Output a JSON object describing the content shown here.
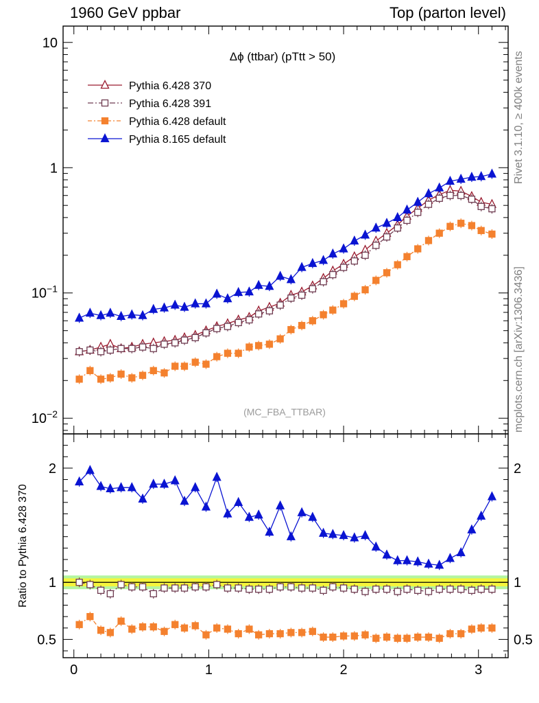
{
  "header": {
    "left": "1960 GeV ppbar",
    "right": "Top (parton level)"
  },
  "side_labels": {
    "top": "Rivet 3.1.10, ≥ 400k events",
    "bottom": "mcplots.cern.ch [arXiv:1306.3436]"
  },
  "chart_data": [
    {
      "type": "line",
      "title": "Δϕ (ttbar) (pTtt > 50)",
      "watermark": "(MC_FBA_TTBAR)",
      "xlabel": "",
      "ylabel": "",
      "yscale": "log",
      "xlim": [
        -0.08,
        3.22
      ],
      "ylim": [
        0.0075,
        13.5
      ],
      "y_ticks": [
        {
          "value": 10,
          "label": "10"
        },
        {
          "value": 1,
          "label": "1"
        },
        {
          "value": 0.1,
          "label": "10",
          "exp": "−1"
        },
        {
          "value": 0.01,
          "label": "10",
          "exp": "−2"
        }
      ],
      "legend_position": "top-left",
      "x": [
        0.04,
        0.12,
        0.2,
        0.27,
        0.35,
        0.43,
        0.51,
        0.59,
        0.67,
        0.75,
        0.82,
        0.9,
        0.98,
        1.06,
        1.14,
        1.22,
        1.3,
        1.37,
        1.45,
        1.53,
        1.61,
        1.69,
        1.77,
        1.85,
        1.92,
        2.0,
        2.08,
        2.16,
        2.24,
        2.32,
        2.4,
        2.47,
        2.55,
        2.63,
        2.71,
        2.79,
        2.87,
        2.95,
        3.02,
        3.1
      ],
      "series": [
        {
          "name": "Pythia 6.428 370",
          "color": "#991a2e",
          "marker": "triangle-open",
          "dash": "",
          "values": [
            0.034,
            0.035,
            0.037,
            0.039,
            0.036,
            0.037,
            0.039,
            0.04,
            0.041,
            0.042,
            0.044,
            0.046,
            0.05,
            0.054,
            0.057,
            0.061,
            0.064,
            0.072,
            0.077,
            0.083,
            0.096,
            0.102,
            0.114,
            0.131,
            0.15,
            0.17,
            0.195,
            0.22,
            0.26,
            0.3,
            0.35,
            0.41,
            0.475,
            0.55,
            0.61,
            0.66,
            0.65,
            0.59,
            0.53,
            0.51
          ]
        },
        {
          "name": "Pythia 6.428 391",
          "color": "#6e3b50",
          "marker": "square-open",
          "dash": "8,3,2,3",
          "values": [
            0.034,
            0.035,
            0.034,
            0.035,
            0.036,
            0.036,
            0.037,
            0.036,
            0.039,
            0.04,
            0.042,
            0.044,
            0.048,
            0.052,
            0.054,
            0.058,
            0.061,
            0.068,
            0.072,
            0.08,
            0.091,
            0.096,
            0.108,
            0.123,
            0.14,
            0.16,
            0.18,
            0.2,
            0.24,
            0.28,
            0.33,
            0.38,
            0.44,
            0.51,
            0.57,
            0.6,
            0.6,
            0.56,
            0.49,
            0.47
          ]
        },
        {
          "name": "Pythia 6.428 default",
          "color": "#f4812e",
          "marker": "square",
          "dash": "6,3,2,3",
          "values": [
            0.0205,
            0.024,
            0.0205,
            0.021,
            0.0225,
            0.021,
            0.022,
            0.024,
            0.023,
            0.026,
            0.026,
            0.028,
            0.027,
            0.031,
            0.033,
            0.033,
            0.037,
            0.038,
            0.039,
            0.043,
            0.051,
            0.055,
            0.06,
            0.067,
            0.073,
            0.082,
            0.094,
            0.106,
            0.126,
            0.145,
            0.168,
            0.195,
            0.225,
            0.262,
            0.3,
            0.34,
            0.36,
            0.345,
            0.315,
            0.295
          ]
        },
        {
          "name": "Pythia 8.165 default",
          "color": "#0a14d2",
          "marker": "triangle",
          "dash": "",
          "values": [
            0.063,
            0.069,
            0.066,
            0.069,
            0.065,
            0.067,
            0.066,
            0.074,
            0.076,
            0.08,
            0.077,
            0.082,
            0.082,
            0.098,
            0.09,
            0.101,
            0.102,
            0.115,
            0.113,
            0.136,
            0.128,
            0.16,
            0.172,
            0.182,
            0.205,
            0.225,
            0.26,
            0.29,
            0.33,
            0.36,
            0.4,
            0.46,
            0.53,
            0.62,
            0.69,
            0.78,
            0.81,
            0.84,
            0.85,
            0.89
          ]
        }
      ]
    },
    {
      "type": "line",
      "xlabel": "",
      "ylabel": "Ratio to Pythia 6.428 370",
      "xlim": [
        -0.08,
        3.22
      ],
      "ylim": [
        0.34,
        2.3
      ],
      "y_ticks": [
        {
          "value": 2,
          "label": "2"
        },
        {
          "value": 1,
          "label": "1"
        },
        {
          "value": 0.5,
          "label": "0.5"
        }
      ],
      "x_ticks": [
        {
          "value": 0,
          "label": "0"
        },
        {
          "value": 1,
          "label": "1"
        },
        {
          "value": 2,
          "label": "2"
        },
        {
          "value": 3,
          "label": "3"
        }
      ],
      "reference_line": 1,
      "band": {
        "inner": [
          0.965,
          1.035
        ],
        "outer": [
          0.94,
          1.06
        ],
        "inner_color": "#f5f53c",
        "outer_color": "#b4f5a0"
      },
      "x": [
        0.04,
        0.12,
        0.2,
        0.27,
        0.35,
        0.43,
        0.51,
        0.59,
        0.67,
        0.75,
        0.82,
        0.9,
        0.98,
        1.06,
        1.14,
        1.22,
        1.3,
        1.37,
        1.45,
        1.53,
        1.61,
        1.69,
        1.77,
        1.85,
        1.92,
        2.0,
        2.08,
        2.16,
        2.24,
        2.32,
        2.4,
        2.47,
        2.55,
        2.63,
        2.71,
        2.79,
        2.87,
        2.95,
        3.02,
        3.1
      ],
      "series": [
        {
          "name": "Pythia 6.428 391",
          "color": "#6e3b50",
          "marker": "square-open",
          "dash": "8,3,2,3",
          "values": [
            1.0,
            0.98,
            0.93,
            0.9,
            0.98,
            0.96,
            0.96,
            0.9,
            0.95,
            0.95,
            0.95,
            0.96,
            0.96,
            0.98,
            0.95,
            0.95,
            0.94,
            0.94,
            0.94,
            0.96,
            0.96,
            0.95,
            0.95,
            0.93,
            0.96,
            0.95,
            0.94,
            0.92,
            0.94,
            0.94,
            0.92,
            0.94,
            0.93,
            0.92,
            0.94,
            0.94,
            0.94,
            0.93,
            0.94,
            0.94
          ]
        },
        {
          "name": "Pythia 6.428 default",
          "color": "#f4812e",
          "marker": "square",
          "dash": "6,3,2,3",
          "values": [
            0.63,
            0.7,
            0.58,
            0.56,
            0.66,
            0.59,
            0.61,
            0.61,
            0.57,
            0.63,
            0.6,
            0.62,
            0.54,
            0.6,
            0.59,
            0.55,
            0.59,
            0.54,
            0.55,
            0.55,
            0.56,
            0.56,
            0.57,
            0.52,
            0.52,
            0.53,
            0.53,
            0.54,
            0.51,
            0.52,
            0.51,
            0.51,
            0.52,
            0.52,
            0.51,
            0.55,
            0.55,
            0.59,
            0.6,
            0.6
          ]
        },
        {
          "name": "Pythia 8.165 default",
          "color": "#0a14d2",
          "marker": "triangle",
          "dash": "",
          "values": [
            1.88,
            1.98,
            1.84,
            1.82,
            1.83,
            1.83,
            1.73,
            1.86,
            1.86,
            1.89,
            1.71,
            1.83,
            1.66,
            1.92,
            1.6,
            1.7,
            1.57,
            1.59,
            1.44,
            1.67,
            1.4,
            1.61,
            1.57,
            1.43,
            1.42,
            1.41,
            1.39,
            1.41,
            1.31,
            1.24,
            1.19,
            1.19,
            1.18,
            1.16,
            1.15,
            1.21,
            1.26,
            1.46,
            1.58,
            1.75
          ]
        }
      ]
    }
  ]
}
